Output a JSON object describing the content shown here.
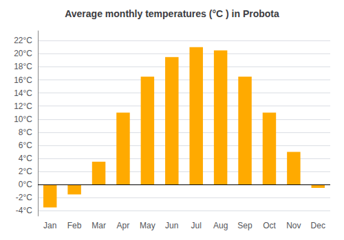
{
  "chart_data": {
    "type": "bar",
    "title": "Average monthly temperatures (°C ) in Probota",
    "categories": [
      "Jan",
      "Feb",
      "Mar",
      "Apr",
      "May",
      "Jun",
      "Jul",
      "Aug",
      "Sep",
      "Oct",
      "Nov",
      "Dec"
    ],
    "values": [
      -3.5,
      -1.5,
      3.5,
      11.0,
      16.5,
      19.5,
      21.0,
      20.5,
      16.5,
      11.0,
      5.0,
      -0.5
    ],
    "color": "#FFAA00",
    "ylim": [
      -4.8,
      23.5
    ],
    "yticks": [
      {
        "value": -4,
        "label": "-4°C"
      },
      {
        "value": -2,
        "label": "-2°C"
      },
      {
        "value": 0,
        "label": "0°C"
      },
      {
        "value": 2,
        "label": "2°C"
      },
      {
        "value": 4,
        "label": "4°C"
      },
      {
        "value": 6,
        "label": "6°C"
      },
      {
        "value": 8,
        "label": "8°C"
      },
      {
        "value": 10,
        "label": "10°C"
      },
      {
        "value": 12,
        "label": "12°C"
      },
      {
        "value": 14,
        "label": "14°C"
      },
      {
        "value": 16,
        "label": "16°C"
      },
      {
        "value": 18,
        "label": "18°C"
      },
      {
        "value": 20,
        "label": "20°C"
      },
      {
        "value": 22,
        "label": "22°C"
      }
    ],
    "grid": true
  }
}
